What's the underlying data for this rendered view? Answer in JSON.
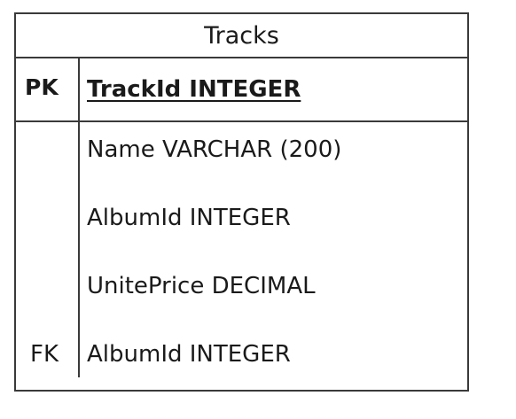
{
  "entity": {
    "title": "Tracks",
    "primary_key": {
      "label": "PK",
      "field": "TrackId INTEGER"
    },
    "fields": [
      {
        "key": "",
        "text": "Name VARCHAR (200)"
      },
      {
        "key": "",
        "text": "AlbumId INTEGER"
      },
      {
        "key": "",
        "text": "UnitePrice DECIMAL"
      },
      {
        "key": "FK",
        "text": "AlbumId INTEGER"
      }
    ]
  }
}
